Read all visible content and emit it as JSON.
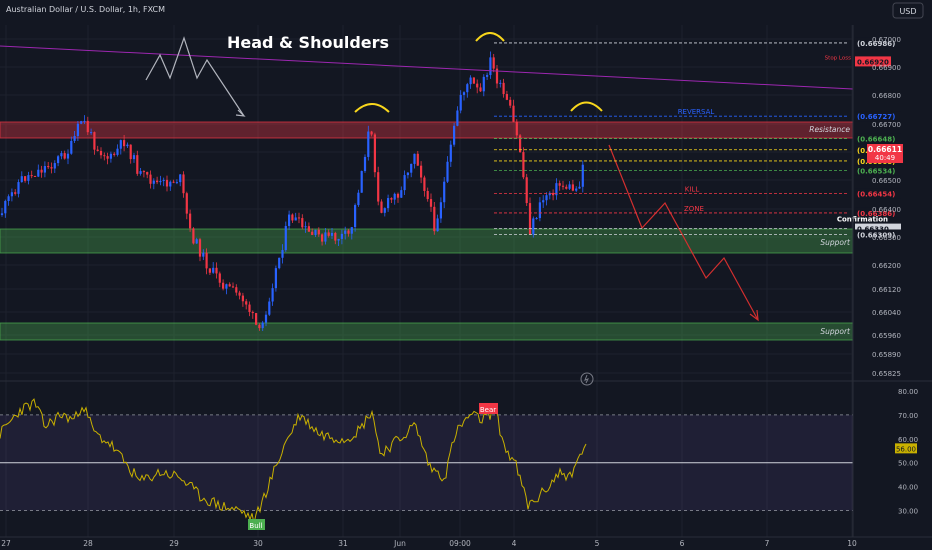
{
  "symbol": "Australian Dollar / U.S. Dollar, 1h, FXCM",
  "currency_button": "USD",
  "pattern_title": "Head & Shoulders",
  "current_price": "0.66611",
  "countdown": "40:49",
  "chart_data": [
    {
      "type": "candlestick",
      "y_axis_ticks": [
        "0.67000",
        "0.66900",
        "0.66800",
        "0.66700",
        "0.66600",
        "0.66500",
        "0.66400",
        "0.66300",
        "0.66200",
        "0.66120",
        "0.66040",
        "0.65960",
        "0.65890",
        "0.65825"
      ],
      "x_axis_ticks": [
        "27",
        "28",
        "29",
        "30",
        "31",
        "Jun",
        "09:00",
        "4",
        "5",
        "6",
        "7",
        "10"
      ],
      "price_levels": [
        {
          "value": "0.66986",
          "label": "(0.66986)",
          "color": "#d1d4dc",
          "style": "dashed"
        },
        {
          "value": "0.66920",
          "label": "0.66920",
          "annotation": "Stop Loss",
          "color": "#f23645",
          "style": "solid"
        },
        {
          "value": "0.66727",
          "label": "(0.66727)",
          "annotation": "REVERSAL",
          "color": "#2962ff",
          "style": "dashed"
        },
        {
          "value": "0.66648",
          "label": "(0.66648)",
          "color": "#4caf50",
          "style": "dashed"
        },
        {
          "value": "0.66608",
          "label": "(0.66608)",
          "color": "#f9d71c",
          "style": "dashed"
        },
        {
          "value": "0.66568",
          "label": "(0.66568)",
          "color": "#f9d71c",
          "style": "dashed"
        },
        {
          "value": "0.66534",
          "label": "(0.66534)",
          "color": "#4caf50",
          "style": "dashed"
        },
        {
          "value": "0.66454",
          "label": "(0.66454)",
          "annotation": "KILL",
          "color": "#f23645",
          "style": "dashed"
        },
        {
          "value": "0.66386",
          "label": "(0.66386)",
          "annotation": "ZONE",
          "color": "#f23645",
          "style": "dashed"
        },
        {
          "value": "0.66330",
          "label": "0.66330",
          "annotation": "Confirmation",
          "color": "#d1d4dc",
          "style": "dashed"
        },
        {
          "value": "0.66309",
          "label": "(0.66309)",
          "color": "#d1d4dc",
          "style": "dashed"
        }
      ],
      "zones": [
        {
          "label": "Resistance",
          "color": "#f23645"
        },
        {
          "label": "Support",
          "color": "#4caf50"
        },
        {
          "label": "Support",
          "color": "#4caf50"
        }
      ]
    },
    {
      "type": "line",
      "indicator": "RSI",
      "current_value": "56.00",
      "y_axis_ticks": [
        "80.00",
        "70.00",
        "60.00",
        "50.00",
        "40.00",
        "30.00"
      ],
      "signals": [
        {
          "label": "Bear",
          "color": "#f23645"
        },
        {
          "label": "Bull",
          "color": "#4caf50"
        }
      ]
    }
  ],
  "colors": {
    "background": "#131722",
    "grid": "#1e222d",
    "bull_candle": "#2962ff",
    "bear_candle": "#f23645",
    "rsi_line": "#c9b100",
    "trendline": "#9c27b0",
    "projection": "#d32f2f"
  }
}
